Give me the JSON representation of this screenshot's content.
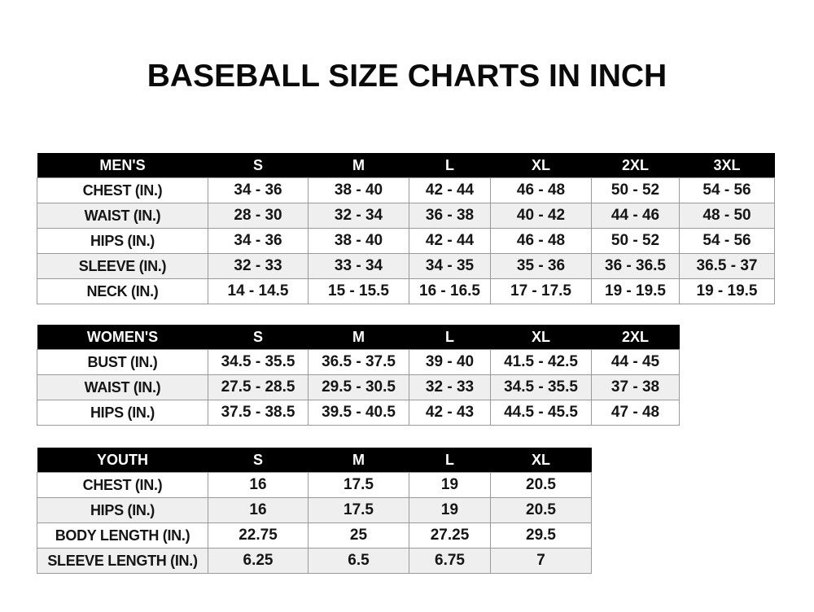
{
  "title": "BASEBALL SIZE CHARTS IN INCH",
  "colors": {
    "header_bg": "#000000",
    "header_text": "#ffffff",
    "alt_row": "#efefef",
    "border": "#9a9a9a"
  },
  "tables": [
    {
      "id": "men",
      "headers": [
        "MEN'S",
        "S",
        "M",
        "L",
        "XL",
        "2XL",
        "3XL"
      ],
      "rows": [
        [
          "CHEST (IN.)",
          "34 - 36",
          "38 - 40",
          "42 - 44",
          "46 - 48",
          "50 - 52",
          "54 - 56"
        ],
        [
          "WAIST (IN.)",
          "28 - 30",
          "32 - 34",
          "36 - 38",
          "40 - 42",
          "44 - 46",
          "48 - 50"
        ],
        [
          "HIPS (IN.)",
          "34 - 36",
          "38 - 40",
          "42 - 44",
          "46 - 48",
          "50 - 52",
          "54 - 56"
        ],
        [
          "SLEEVE (IN.)",
          "32 - 33",
          "33 - 34",
          "34 - 35",
          "35 - 36",
          "36 - 36.5",
          "36.5 - 37"
        ],
        [
          "NECK (IN.)",
          "14 - 14.5",
          "15 - 15.5",
          "16 - 16.5",
          "17 - 17.5",
          "19 - 19.5",
          "19 - 19.5"
        ]
      ]
    },
    {
      "id": "women",
      "headers": [
        "WOMEN'S",
        "S",
        "M",
        "L",
        "XL",
        "2XL"
      ],
      "rows": [
        [
          "BUST (IN.)",
          "34.5 - 35.5",
          "36.5 - 37.5",
          "39 - 40",
          "41.5 - 42.5",
          "44 - 45"
        ],
        [
          "WAIST (IN.)",
          "27.5 - 28.5",
          "29.5 - 30.5",
          "32 - 33",
          "34.5 - 35.5",
          "37 - 38"
        ],
        [
          "HIPS (IN.)",
          "37.5 - 38.5",
          "39.5 - 40.5",
          "42 - 43",
          "44.5 - 45.5",
          "47 - 48"
        ]
      ]
    },
    {
      "id": "youth",
      "headers": [
        "YOUTH",
        "S",
        "M",
        "L",
        "XL"
      ],
      "rows": [
        [
          "CHEST (IN.)",
          "16",
          "17.5",
          "19",
          "20.5"
        ],
        [
          "HIPS (IN.)",
          "16",
          "17.5",
          "19",
          "20.5"
        ],
        [
          "BODY LENGTH (IN.)",
          "22.75",
          "25",
          "27.25",
          "29.5"
        ],
        [
          "SLEEVE LENGTH (IN.)",
          "6.25",
          "6.5",
          "6.75",
          "7"
        ]
      ]
    }
  ]
}
